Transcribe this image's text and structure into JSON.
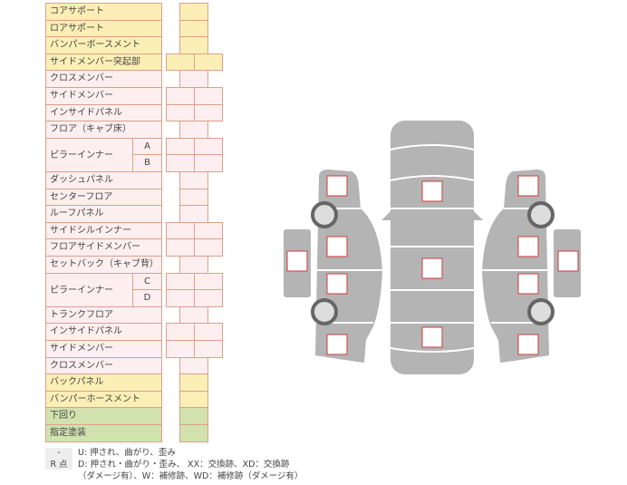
{
  "colors": {
    "yellow": "#fbefb5",
    "pink": "#fdeef0",
    "green": "#d2e2ae",
    "border": "#dca08a",
    "body": "#b4b4b4",
    "mark": "#d23a3a"
  },
  "rows": [
    {
      "label": "コアサポート",
      "cols": 1,
      "color": "y"
    },
    {
      "label": "ロアサポート",
      "cols": 1,
      "color": "y"
    },
    {
      "label": "バンパーボースメント",
      "cols": 1,
      "color": "y"
    },
    {
      "label": "サイドメンバー突起部",
      "cols": 2,
      "color": "y"
    },
    {
      "label": "クロスメンバー",
      "cols": 1,
      "color": "p"
    },
    {
      "label": "サイドメンバー",
      "cols": 2,
      "color": "p"
    },
    {
      "label": "インサイドパネル",
      "cols": 2,
      "color": "p"
    },
    {
      "label": "フロア（キャブ床）",
      "cols": 1,
      "color": "p"
    },
    {
      "label": "ピラーインナー",
      "sub": "A",
      "cols": 2,
      "color": "p",
      "group": "start"
    },
    {
      "label": "",
      "sub": "B",
      "cols": 2,
      "color": "p",
      "group": "cont"
    },
    {
      "label": "ダッシュパネル",
      "cols": 1,
      "color": "p"
    },
    {
      "label": "センターフロア",
      "cols": 1,
      "color": "p"
    },
    {
      "label": "ルーフパネル",
      "cols": 1,
      "color": "p"
    },
    {
      "label": "サイドシルインナー",
      "cols": 2,
      "color": "p"
    },
    {
      "label": "フロアサイドメンバー",
      "cols": 2,
      "color": "p"
    },
    {
      "label": "セットバック（キャブ背）",
      "cols": 1,
      "color": "p"
    },
    {
      "label": "ピラーインナー",
      "sub": "C",
      "cols": 2,
      "color": "p",
      "group": "start"
    },
    {
      "label": "",
      "sub": "D",
      "cols": 2,
      "color": "p",
      "group": "cont"
    },
    {
      "label": "トランクフロア",
      "cols": 1,
      "color": "p"
    },
    {
      "label": "インサイドパネル",
      "cols": 2,
      "color": "p"
    },
    {
      "label": "サイドメンバー",
      "cols": 2,
      "color": "p"
    },
    {
      "label": "クロスメンバー",
      "cols": 1,
      "color": "p"
    },
    {
      "label": "バックパネル",
      "cols": 1,
      "color": "y"
    },
    {
      "label": "バンパーホースメント",
      "cols": 1,
      "color": "y"
    },
    {
      "label": "下回り",
      "cols": 1,
      "color": "g"
    },
    {
      "label": "指定塗装",
      "cols": 1,
      "color": "g"
    }
  ],
  "legend": [
    {
      "tag": "-",
      "text": "U: 押され、曲がり、歪み"
    },
    {
      "tag": "R 点",
      "text": "D: 押され・曲がり・歪み、 XX：交換跡、XD：交換跡"
    },
    {
      "tag": "",
      "text": "（ダメージ有）、W：補修跡、WD：補修跡（ダメージ有）"
    }
  ]
}
